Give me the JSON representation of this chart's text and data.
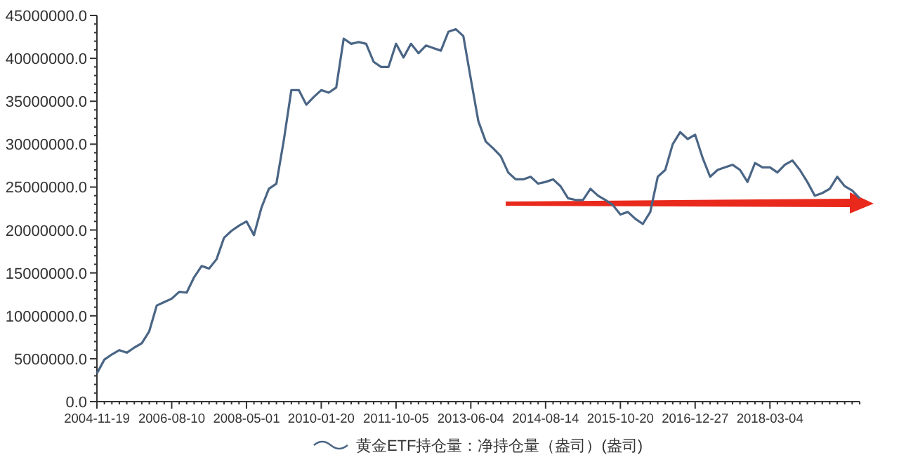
{
  "chart_data": {
    "type": "line",
    "categories": [
      "2004-11-19",
      null,
      null,
      null,
      null,
      null,
      null,
      null,
      null,
      null,
      "2006-08-10",
      null,
      null,
      null,
      null,
      null,
      null,
      null,
      null,
      null,
      "2008-05-01",
      null,
      null,
      null,
      null,
      null,
      null,
      null,
      null,
      null,
      "2010-01-20",
      null,
      null,
      null,
      null,
      null,
      null,
      null,
      null,
      null,
      "2011-10-05",
      null,
      null,
      null,
      null,
      null,
      null,
      null,
      null,
      null,
      "2013-06-04",
      null,
      null,
      null,
      null,
      null,
      null,
      null,
      null,
      null,
      "2014-08-14",
      null,
      null,
      null,
      null,
      null,
      null,
      null,
      null,
      null,
      "2015-10-20",
      null,
      null,
      null,
      null,
      null,
      null,
      null,
      null,
      null,
      "2016-12-27",
      null,
      null,
      null,
      null,
      null,
      null,
      null,
      null,
      null,
      "2018-03-04",
      null,
      null,
      null,
      null,
      null,
      null,
      null,
      null,
      null,
      null,
      null,
      null
    ],
    "series": [
      {
        "name": "黄金ETF持仓量：净持仓量（盎司）(盎司)",
        "color": "#4a6585",
        "values": [
          3300000,
          4900000,
          5500000,
          6000000,
          5700000,
          6300000,
          6800000,
          8200000,
          11200000,
          11600000,
          12000000,
          12800000,
          12700000,
          14500000,
          15800000,
          15500000,
          16600000,
          19100000,
          19900000,
          20500000,
          21000000,
          19400000,
          22600000,
          24800000,
          25400000,
          30500000,
          36300000,
          36300000,
          34600000,
          35500000,
          36300000,
          36000000,
          36600000,
          42300000,
          41700000,
          41900000,
          41700000,
          39600000,
          39000000,
          39000000,
          41700000,
          40100000,
          41700000,
          40600000,
          41500000,
          41200000,
          40900000,
          43100000,
          43400000,
          42600000,
          37600000,
          32700000,
          30300000,
          29500000,
          28600000,
          26700000,
          25900000,
          25900000,
          26200000,
          25400000,
          25600000,
          25900000,
          25100000,
          23700000,
          23500000,
          23500000,
          24800000,
          24000000,
          23500000,
          22900000,
          21800000,
          22100000,
          21300000,
          20700000,
          22100000,
          26200000,
          27000000,
          30000000,
          31400000,
          30600000,
          31100000,
          28400000,
          26200000,
          27000000,
          27300000,
          27600000,
          27000000,
          25600000,
          27800000,
          27300000,
          27300000,
          26700000,
          27600000,
          28100000,
          27000000,
          25600000,
          24000000,
          24300000,
          24800000,
          26200000,
          25100000,
          24600000,
          23700000
        ]
      }
    ],
    "ylim": [
      0,
      45000000
    ],
    "yticks": [
      {
        "value": 0,
        "label": "0.0"
      },
      {
        "value": 5000000,
        "label": "5000000.0"
      },
      {
        "value": 10000000,
        "label": "10000000.0"
      },
      {
        "value": 15000000,
        "label": "15000000.0"
      },
      {
        "value": 20000000,
        "label": "20000000.0"
      },
      {
        "value": 25000000,
        "label": "25000000.0"
      },
      {
        "value": 30000000,
        "label": "30000000.0"
      },
      {
        "value": 35000000,
        "label": "35000000.0"
      },
      {
        "value": 40000000,
        "label": "40000000.0"
      },
      {
        "value": 45000000,
        "label": "45000000.0"
      }
    ],
    "legend": "bottom",
    "grid": false,
    "marker": "none",
    "line_style": "solid"
  }
}
